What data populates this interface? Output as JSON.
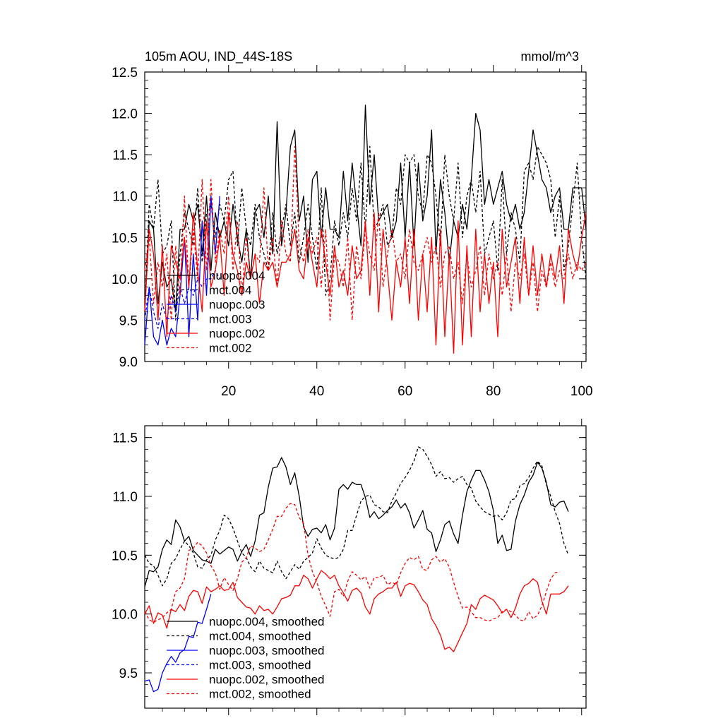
{
  "chart_data": [
    {
      "type": "line",
      "title": "105m AOU, IND_44S-18S",
      "units": "mmol/m^3",
      "xlabel": "",
      "ylabel": "",
      "xlim": [
        1,
        101
      ],
      "ylim": [
        9.0,
        12.5
      ],
      "xticks": [
        20,
        40,
        60,
        80,
        100
      ],
      "yticks": [
        "9.0",
        "9.5",
        "10.0",
        "10.5",
        "11.0",
        "11.5",
        "12.0",
        "12.5"
      ],
      "legend_position": "lower-left inside",
      "series": [
        {
          "name": "nuopc.004",
          "color": "#000000",
          "dash": "solid",
          "x_start": 1,
          "values": [
            9.6,
            10.7,
            10.6,
            9.7,
            10.2,
            9.9,
            10.0,
            9.6,
            10.6,
            10.6,
            10.9,
            10.7,
            10.9,
            10.3,
            11.0,
            10.1,
            10.8,
            10.5,
            10.7,
            10.4,
            10.9,
            10.5,
            10.2,
            10.6,
            10.0,
            10.8,
            10.9,
            10.5,
            11.0,
            10.3,
            11.9,
            10.4,
            10.8,
            11.6,
            11.8,
            10.7,
            11.0,
            10.2,
            11.2,
            11.3,
            10.5,
            11.1,
            10.6,
            10.6,
            10.5,
            11.3,
            10.7,
            11.4,
            10.9,
            10.4,
            12.1,
            10.9,
            11.5,
            10.7,
            10.8,
            10.9,
            10.5,
            10.7,
            11.4,
            10.5,
            11.4,
            10.4,
            11.4,
            10.7,
            11.0,
            11.8,
            10.3,
            11.2,
            10.8,
            10.2,
            10.7,
            10.5,
            10.9,
            10.6,
            11.2,
            12.0,
            11.8,
            10.9,
            11.2,
            10.9,
            11.1,
            11.3,
            10.9,
            10.7,
            10.9,
            10.6,
            10.8,
            11.3,
            11.8,
            11.5,
            11.2,
            11.1,
            10.8,
            11.0,
            11.1,
            10.6,
            10.6,
            11.1,
            11.1,
            11.1,
            10.6
          ]
        },
        {
          "name": "mct.004",
          "color": "#000000",
          "dash": "dashed",
          "x_start": 1,
          "values": [
            9.6,
            10.9,
            10.6,
            11.2,
            10.3,
            10.4,
            10.7,
            9.5,
            10.3,
            10.8,
            10.6,
            10.4,
            11.1,
            10.2,
            10.8,
            10.9,
            10.5,
            10.9,
            10.7,
            11.2,
            11.3,
            10.4,
            11.1,
            10.6,
            10.4,
            10.9,
            10.5,
            10.3,
            10.1,
            10.8,
            10.3,
            10.6,
            10.9,
            10.4,
            10.8,
            10.2,
            10.5,
            10.9,
            10.5,
            10.1,
            11.1,
            9.8,
            10.0,
            10.7,
            10.4,
            10.8,
            10.5,
            11.1,
            10.7,
            11.4,
            10.6,
            11.6,
            10.6,
            10.7,
            10.9,
            10.4,
            10.5,
            11.1,
            10.9,
            11.5,
            11.4,
            11.5,
            11.0,
            10.8,
            11.5,
            11.4,
            11.0,
            10.4,
            11.5,
            11.0,
            10.7,
            11.4,
            10.5,
            11.0,
            11.2,
            10.8,
            11.3,
            10.3,
            10.5,
            10.7,
            10.1,
            11.2,
            10.3,
            10.8,
            10.6,
            10.2,
            11.3,
            11.4,
            11.2,
            11.6,
            11.5,
            11.4,
            11.2,
            10.5,
            11.0,
            10.1,
            10.4,
            10.9,
            11.4,
            10.5,
            10.0
          ]
        },
        {
          "name": "nuopc.003",
          "color": "#0000ff",
          "dash": "solid",
          "x_start": 1,
          "values": [
            9.2,
            9.9,
            9.3,
            9.2,
            9.5,
            9.2,
            9.4,
            9.3,
            9.8,
            10.5,
            9.3,
            10.3,
            9.5,
            10.7,
            9.8,
            11.0,
            10.3,
            11.0
          ]
        },
        {
          "name": "mct.003",
          "color": "#0000ff",
          "dash": "dashed",
          "x_start": 1,
          "values": [
            9.5,
            9.9,
            9.6,
            9.4,
            9.7,
            9.5,
            9.8,
            9.6,
            9.9,
            9.7,
            9.9,
            9.8,
            10.0,
            9.9,
            10.0,
            10.0,
            10.1,
            10.0
          ]
        },
        {
          "name": "nuopc.002",
          "color": "#ff0000",
          "dash": "solid",
          "x_start": 1,
          "values": [
            9.6,
            10.6,
            10.3,
            9.5,
            10.4,
            9.3,
            10.4,
            10.2,
            10.0,
            10.5,
            9.9,
            10.8,
            10.1,
            9.6,
            10.7,
            9.9,
            10.1,
            10.5,
            9.8,
            10.8,
            10.3,
            10.1,
            9.8,
            10.2,
            10.0,
            10.3,
            9.7,
            10.2,
            10.1,
            10.2,
            9.9,
            10.2,
            10.2,
            10.3,
            10.6,
            10.1,
            10.0,
            10.5,
            10.2,
            9.9,
            10.6,
            10.2,
            9.8,
            10.4,
            9.9,
            10.1,
            9.8,
            10.4,
            10.0,
            10.1,
            10.7,
            9.8,
            10.8,
            9.6,
            10.6,
            10.1,
            9.5,
            10.2,
            9.9,
            10.5,
            9.7,
            10.6,
            9.5,
            10.3,
            9.6,
            10.5,
            9.2,
            10.6,
            9.3,
            10.3,
            9.1,
            10.7,
            9.2,
            10.4,
            9.3,
            10.6,
            9.6,
            10.3,
            9.7,
            10.2,
            9.3,
            10.6,
            9.9,
            10.2,
            10.5,
            9.7,
            10.5,
            9.8,
            10.4,
            9.8,
            10.3,
            9.9,
            10.3,
            10.0,
            10.4,
            9.7,
            10.6,
            10.3,
            10.1,
            10.5,
            10.8
          ]
        },
        {
          "name": "mct.002",
          "color": "#ff0000",
          "dash": "dashed",
          "x_start": 1,
          "values": [
            10.1,
            10.5,
            9.7,
            10.2,
            9.9,
            10.3,
            9.5,
            10.4,
            9.8,
            11.0,
            9.9,
            10.6,
            10.0,
            11.2,
            10.1,
            11.2,
            10.2,
            10.6,
            10.3,
            11.0,
            10.1,
            10.7,
            9.8,
            10.5,
            10.0,
            10.3,
            10.2,
            11.1,
            10.1,
            10.5,
            9.9,
            10.7,
            10.3,
            10.2,
            11.6,
            10.4,
            10.2,
            10.6,
            10.3,
            10.5,
            9.9,
            10.6,
            9.5,
            10.3,
            10.2,
            9.9,
            10.5,
            9.5,
            10.4,
            10.0,
            10.6,
            10.3,
            10.1,
            10.8,
            9.9,
            10.3,
            10.6,
            10.2,
            10.3,
            10.0,
            10.6,
            10.2,
            10.1,
            10.3,
            10.5,
            10.2,
            10.4,
            9.9,
            10.3,
            10.4,
            10.0,
            10.2,
            9.7,
            10.3,
            9.9,
            10.1,
            10.4,
            9.8,
            10.3,
            10.0,
            10.2,
            9.8,
            10.3,
            9.6,
            10.2,
            10.0,
            10.3,
            9.8,
            10.2,
            9.6,
            10.1,
            9.9,
            10.2,
            9.9,
            10.1,
            10.0,
            10.3,
            10.0,
            10.2,
            10.1,
            10.2
          ]
        }
      ]
    },
    {
      "type": "line",
      "title": "",
      "xlabel": "",
      "ylabel": "",
      "xlim": [
        1,
        101
      ],
      "ylim": [
        9.2,
        11.6
      ],
      "xticks": [
        20,
        40,
        60,
        80,
        100
      ],
      "yticks": [
        "9.5",
        "10.0",
        "10.5",
        "11.0",
        "11.5"
      ],
      "legend_position": "lower-left inside",
      "series": [
        {
          "name": "nuopc.004, smoothed",
          "color": "#000000",
          "dash": "solid",
          "x_start": 1,
          "values": [
            10.23,
            10.37,
            10.36,
            10.4,
            10.55,
            10.63,
            10.59,
            10.8,
            10.74,
            10.62,
            10.66,
            10.54,
            10.5,
            10.46,
            10.45,
            10.43,
            10.55,
            10.51,
            10.54,
            10.57,
            10.55,
            10.45,
            10.53,
            10.59,
            10.49,
            10.62,
            10.84,
            10.86,
            11.08,
            11.24,
            11.25,
            11.33,
            11.25,
            11.1,
            11.2,
            11.0,
            10.74,
            10.66,
            10.72,
            10.73,
            10.69,
            10.76,
            10.63,
            10.73,
            11.06,
            11.1,
            11.06,
            11.12,
            11.1,
            11.1,
            10.99,
            10.82,
            10.87,
            10.81,
            10.84,
            10.88,
            10.91,
            10.97,
            10.9,
            10.94,
            10.86,
            10.73,
            10.8,
            10.88,
            10.72,
            10.69,
            10.53,
            10.63,
            10.76,
            10.79,
            10.68,
            10.6,
            10.84,
            11.04,
            11.14,
            11.22,
            11.22,
            11.14,
            11.04,
            10.88,
            10.6,
            10.67,
            10.54,
            10.55,
            10.79,
            10.93,
            11.01,
            11.12,
            11.18,
            11.29,
            11.24,
            11.12,
            10.93,
            10.91,
            10.95,
            10.96,
            10.87
          ]
        },
        {
          "name": "mct.004, smoothed",
          "color": "#000000",
          "dash": "dashed",
          "x_start": 1,
          "values": [
            10.5,
            10.43,
            10.41,
            10.33,
            10.24,
            10.3,
            10.43,
            10.47,
            10.55,
            10.62,
            10.58,
            10.52,
            10.4,
            10.39,
            10.46,
            10.5,
            10.63,
            10.71,
            10.84,
            10.81,
            10.73,
            10.62,
            10.52,
            10.48,
            10.4,
            10.36,
            10.45,
            10.39,
            10.37,
            10.35,
            10.45,
            10.36,
            10.3,
            10.36,
            10.42,
            10.38,
            10.45,
            10.48,
            10.52,
            10.64,
            10.56,
            10.5,
            10.48,
            10.47,
            10.48,
            10.55,
            10.71,
            10.71,
            10.84,
            10.96,
            11.0,
            11.01,
            10.93,
            10.91,
            10.87,
            10.86,
            10.96,
            11.03,
            11.11,
            11.16,
            11.22,
            11.3,
            11.42,
            11.4,
            11.34,
            11.27,
            11.17,
            11.21,
            11.15,
            11.16,
            11.12,
            11.15,
            11.17,
            11.1,
            11.07,
            10.96,
            10.91,
            10.87,
            10.85,
            10.83,
            10.84,
            10.8,
            10.86,
            10.97,
            10.98,
            11.09,
            11.11,
            11.16,
            11.24,
            11.3,
            11.26,
            11.1,
            11.0,
            10.87,
            10.77,
            10.6,
            10.5
          ]
        },
        {
          "name": "nuopc.003, smoothed",
          "color": "#0000ff",
          "dash": "solid",
          "x_start": 1,
          "values": [
            9.43,
            9.44,
            9.34,
            9.36,
            9.5,
            9.58,
            9.64,
            9.59,
            9.67,
            9.7,
            9.81,
            9.8,
            9.93,
            9.92,
            10.04,
            10.17
          ]
        },
        {
          "name": "mct.003, smoothed",
          "color": "#0000ff",
          "dash": "dashed",
          "x_start": 1,
          "values": []
        },
        {
          "name": "nuopc.002, smoothed",
          "color": "#ff0000",
          "dash": "solid",
          "x_start": 1,
          "values": [
            10.0,
            10.07,
            9.92,
            10.01,
            9.99,
            9.88,
            10.04,
            10.02,
            10.08,
            10.03,
            10.15,
            10.2,
            10.19,
            10.09,
            10.23,
            10.19,
            10.21,
            10.24,
            10.2,
            10.21,
            10.27,
            10.14,
            10.1,
            10.06,
            10.05,
            10.0,
            10.07,
            10.03,
            10.04,
            10.0,
            10.06,
            10.13,
            10.14,
            10.16,
            10.24,
            10.24,
            10.33,
            10.3,
            10.22,
            10.3,
            10.37,
            10.34,
            10.3,
            10.33,
            10.24,
            10.18,
            10.11,
            10.2,
            10.22,
            10.18,
            10.06,
            10.0,
            10.13,
            10.17,
            10.19,
            10.22,
            10.22,
            10.27,
            10.15,
            10.24,
            10.26,
            10.25,
            10.19,
            10.12,
            10.08,
            9.96,
            9.9,
            9.82,
            9.7,
            9.72,
            9.68,
            9.76,
            9.84,
            9.92,
            10.08,
            10.04,
            10.13,
            10.16,
            10.14,
            10.12,
            10.07,
            10.01,
            10.04,
            9.97,
            10.05,
            10.17,
            10.24,
            10.26,
            10.3,
            10.27,
            10.11,
            10.0,
            10.17,
            10.17,
            10.17,
            10.19,
            10.24
          ]
        },
        {
          "name": "mct.002, smoothed",
          "color": "#ff0000",
          "dash": "dashed",
          "x_start": 1,
          "values": [
            10.02,
            9.95,
            9.93,
            9.95,
            9.97,
            10.01,
            10.04,
            10.19,
            10.22,
            10.3,
            10.54,
            10.56,
            10.61,
            10.58,
            10.52,
            10.41,
            10.35,
            10.21,
            10.31,
            10.25,
            10.2,
            10.3,
            10.44,
            10.48,
            10.58,
            10.56,
            10.53,
            10.55,
            10.63,
            10.72,
            10.83,
            10.83,
            10.9,
            10.94,
            10.93,
            10.82,
            10.77,
            10.5,
            10.36,
            10.27,
            10.15,
            10.07,
            9.98,
            10.19,
            10.21,
            10.15,
            10.28,
            10.36,
            10.33,
            10.29,
            10.32,
            10.22,
            10.31,
            10.31,
            10.33,
            10.25,
            10.27,
            10.25,
            10.35,
            10.43,
            10.48,
            10.46,
            10.49,
            10.38,
            10.37,
            10.46,
            10.49,
            10.44,
            10.47,
            10.4,
            10.27,
            10.15,
            10.05,
            10.06,
            10.02,
            9.97,
            9.97,
            9.95,
            9.94,
            9.96,
            9.97,
            10.02,
            10.04,
            10.02,
            9.99,
            9.95,
            9.94,
            10.02,
            9.96,
            9.99,
            10.07,
            10.19,
            10.3,
            10.35,
            10.36
          ]
        }
      ]
    }
  ]
}
